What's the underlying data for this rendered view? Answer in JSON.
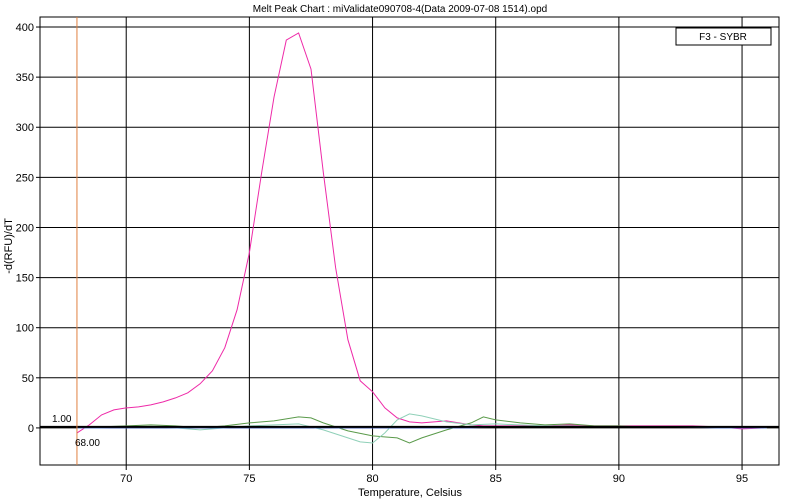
{
  "chart_data": {
    "type": "line",
    "title": "Melt Peak Chart : miValidate090708-4(Data 2009-07-08 1514).opd",
    "xlabel": "Temperature, Celsius",
    "ylabel": "-d(RFU)/dT",
    "xlim": [
      66.5,
      96.5
    ],
    "ylim": [
      -37,
      410
    ],
    "x_ticks": [
      70,
      75,
      80,
      85,
      90,
      95
    ],
    "y_ticks": [
      0,
      50,
      100,
      150,
      200,
      250,
      300,
      350,
      400
    ],
    "grid": true,
    "legend": {
      "position": "top-right",
      "label": "F3 - SYBR"
    },
    "threshold": {
      "value": 1.0,
      "label": "1.00"
    },
    "start_marker": {
      "x": 68.0,
      "label": "68.00"
    },
    "series": [
      {
        "color": "#ee2aa8",
        "points": [
          [
            68.0,
            -5
          ],
          [
            68.5,
            3
          ],
          [
            69.0,
            13
          ],
          [
            69.5,
            18
          ],
          [
            70.0,
            20
          ],
          [
            70.5,
            21
          ],
          [
            71.0,
            23
          ],
          [
            71.5,
            26
          ],
          [
            72.0,
            30
          ],
          [
            72.5,
            35
          ],
          [
            73.0,
            44
          ],
          [
            73.5,
            57
          ],
          [
            74.0,
            80
          ],
          [
            74.5,
            118
          ],
          [
            75.0,
            175
          ],
          [
            75.5,
            255
          ],
          [
            76.0,
            330
          ],
          [
            76.5,
            387
          ],
          [
            77.0,
            394
          ],
          [
            77.5,
            358
          ],
          [
            78.0,
            255
          ],
          [
            78.5,
            160
          ],
          [
            79.0,
            88
          ],
          [
            79.5,
            47
          ],
          [
            80.0,
            36
          ],
          [
            80.5,
            20
          ],
          [
            81.0,
            10
          ],
          [
            81.5,
            6
          ],
          [
            82.0,
            5
          ],
          [
            82.5,
            6
          ],
          [
            83.0,
            7
          ],
          [
            83.5,
            5
          ],
          [
            84.0,
            3
          ],
          [
            84.5,
            2
          ],
          [
            85.0,
            2
          ],
          [
            86.0,
            2
          ],
          [
            87.0,
            2
          ],
          [
            88.0,
            3
          ],
          [
            89.0,
            2
          ],
          [
            90.0,
            2
          ],
          [
            91.0,
            2
          ],
          [
            92.0,
            2
          ],
          [
            93.0,
            2
          ],
          [
            94.0,
            1
          ],
          [
            95.0,
            -1
          ],
          [
            96.0,
            0
          ]
        ]
      },
      {
        "color": "#5a9a4a",
        "points": [
          [
            68.0,
            0
          ],
          [
            69.0,
            1
          ],
          [
            70.0,
            2
          ],
          [
            71.0,
            3
          ],
          [
            72.0,
            2
          ],
          [
            73.0,
            0
          ],
          [
            74.0,
            2
          ],
          [
            75.0,
            5
          ],
          [
            76.0,
            7
          ],
          [
            77.0,
            11
          ],
          [
            77.5,
            10
          ],
          [
            78.0,
            5
          ],
          [
            79.0,
            -3
          ],
          [
            80.0,
            -8
          ],
          [
            81.0,
            -10
          ],
          [
            81.5,
            -15
          ],
          [
            82.0,
            -10
          ],
          [
            83.0,
            -2
          ],
          [
            84.0,
            5
          ],
          [
            84.5,
            11
          ],
          [
            85.0,
            8
          ],
          [
            86.0,
            5
          ],
          [
            87.0,
            3
          ],
          [
            88.0,
            4
          ],
          [
            89.0,
            2
          ],
          [
            90.0,
            2
          ],
          [
            91.0,
            1
          ],
          [
            92.0,
            1
          ],
          [
            93.0,
            1
          ],
          [
            94.0,
            1
          ],
          [
            95.0,
            0
          ],
          [
            96.0,
            0
          ]
        ]
      },
      {
        "color": "#8fd0b8",
        "points": [
          [
            68.0,
            0
          ],
          [
            69.0,
            0
          ],
          [
            70.0,
            1
          ],
          [
            71.0,
            1
          ],
          [
            72.0,
            0
          ],
          [
            73.0,
            -2
          ],
          [
            74.0,
            0
          ],
          [
            75.0,
            2
          ],
          [
            76.0,
            3
          ],
          [
            77.0,
            4
          ],
          [
            78.0,
            -2
          ],
          [
            79.0,
            -10
          ],
          [
            79.5,
            -14
          ],
          [
            80.0,
            -15
          ],
          [
            80.5,
            -5
          ],
          [
            81.0,
            8
          ],
          [
            81.5,
            14
          ],
          [
            82.0,
            12
          ],
          [
            83.0,
            6
          ],
          [
            84.0,
            3
          ],
          [
            85.0,
            4
          ],
          [
            86.0,
            3
          ],
          [
            87.0,
            2
          ],
          [
            88.0,
            2
          ],
          [
            89.0,
            1
          ],
          [
            90.0,
            1
          ],
          [
            91.0,
            1
          ],
          [
            92.0,
            1
          ],
          [
            93.0,
            1
          ],
          [
            94.0,
            0
          ],
          [
            95.0,
            0
          ],
          [
            96.0,
            0
          ]
        ]
      },
      {
        "color": "#4a6ad8",
        "points": [
          [
            68.0,
            0
          ],
          [
            70.0,
            0
          ],
          [
            72.0,
            0
          ],
          [
            74.0,
            0
          ],
          [
            76.0,
            0
          ],
          [
            78.0,
            0
          ],
          [
            80.0,
            0
          ],
          [
            82.0,
            0
          ],
          [
            84.0,
            0
          ],
          [
            85.0,
            1
          ],
          [
            86.0,
            1
          ],
          [
            88.0,
            1
          ],
          [
            90.0,
            1
          ],
          [
            92.0,
            1
          ],
          [
            94.0,
            0
          ],
          [
            96.0,
            0
          ]
        ]
      }
    ]
  }
}
